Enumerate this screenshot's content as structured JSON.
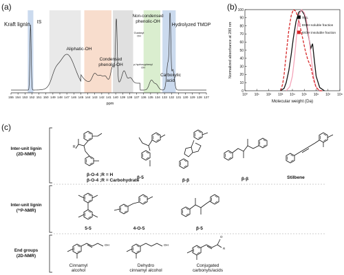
{
  "panel_a": {
    "letter": "(a)",
    "title": "Kraft lignin",
    "xlabel": "ppm",
    "ticks": [
      "155",
      "154",
      "153",
      "152",
      "151",
      "150",
      "149",
      "148",
      "147",
      "146",
      "145",
      "144",
      "143",
      "142",
      "141",
      "140",
      "139",
      "138",
      "137",
      "136",
      "135",
      "134",
      "133",
      "132",
      "131",
      "130",
      "129",
      "128",
      "127"
    ],
    "regions": [
      {
        "label": "IS",
        "color": "#b9cde8"
      },
      {
        "label": "Aliphatic-OH",
        "color": "#e2e2e2"
      },
      {
        "label": "Condensed phenolic-OH",
        "color": "#f6d2bc"
      },
      {
        "label": "Non-condensed phenolic-OH",
        "color": "#d5d5d5"
      },
      {
        "label": "Carboxylic acid",
        "color": "#cde8bf"
      },
      {
        "label": "Hydrolyzed TMDP",
        "color": "#b9cde8"
      }
    ],
    "peak_labels": [
      "Guaiacyl OH",
      "p-hydroxyphenyl OH"
    ]
  },
  "panel_b": {
    "letter": "(b)",
    "chart_data": {
      "type": "line",
      "xlabel": "Molecular weight (Da)",
      "ylabel": "Normalized absorbance at 280 nm",
      "xscale": "log",
      "xlim": [
        1,
        100000000
      ],
      "ylim": [
        0,
        100
      ],
      "yticks": [
        0,
        10,
        20,
        30,
        40,
        50,
        60,
        70,
        80,
        90,
        100
      ],
      "xtick_labels": [
        "10⁰",
        "10¹",
        "10²",
        "10³",
        "10⁴",
        "10⁵",
        "10⁶",
        "10⁷",
        "10⁸"
      ],
      "legend_position": "top-right",
      "series": [
        {
          "name": "SKL",
          "color": "#111111",
          "dash": "solid",
          "x": [
            1000,
            2000,
            3000,
            5000,
            8000,
            12000,
            20000,
            35000,
            60000,
            100000,
            140000,
            200000,
            350000,
            500000,
            700000,
            1000000,
            2000000,
            5000000
          ],
          "y": [
            0,
            3,
            10,
            25,
            45,
            65,
            85,
            97,
            99,
            94,
            85,
            72,
            52,
            58,
            38,
            18,
            4,
            0
          ]
        },
        {
          "name": "EtOH soluble fraction",
          "color": "#f4a3b8",
          "dash": "solid",
          "x": [
            3000,
            6000,
            10000,
            15000,
            25000,
            40000,
            60000,
            100000,
            150000,
            250000,
            400000,
            600000,
            900000,
            1500000,
            3000000
          ],
          "y": [
            0,
            5,
            18,
            40,
            75,
            95,
            100,
            96,
            88,
            65,
            38,
            18,
            6,
            1,
            0
          ]
        },
        {
          "name": "EtOH insoluble fraction",
          "color": "#d62728",
          "dash": "dashed",
          "x": [
            1000,
            1500,
            2000,
            3000,
            5000,
            8000,
            12000,
            20000,
            30000,
            50000,
            80000,
            120000,
            200000,
            350000,
            600000,
            1000000,
            2000000,
            4000000
          ],
          "y": [
            0,
            8,
            20,
            45,
            75,
            93,
            100,
            98,
            90,
            76,
            62,
            50,
            38,
            30,
            14,
            4,
            0,
            0
          ]
        }
      ]
    }
  },
  "panel_c": {
    "letter": "(c)",
    "groups": [
      {
        "label": "Inter-unit lignin",
        "sub": "(2D-NMR)",
        "captions": [
          "β-O-4 ;R = H",
          "β-O-4 ;R = Carbohydrate",
          "β-5",
          "β-β",
          "β-β",
          "Stilbene"
        ]
      },
      {
        "label": "Inter-unit lignin",
        "sub": "(³¹P-NMR)",
        "captions": [
          "5-5",
          "4-O-5",
          "β-5"
        ]
      },
      {
        "label": "End groups",
        "sub": "(2D-NMR)",
        "captions": [
          "Cinnamyl alcohol",
          "Dehydro cinnamyl alcohol",
          "Conjugated carbonyls/acids"
        ]
      }
    ]
  }
}
